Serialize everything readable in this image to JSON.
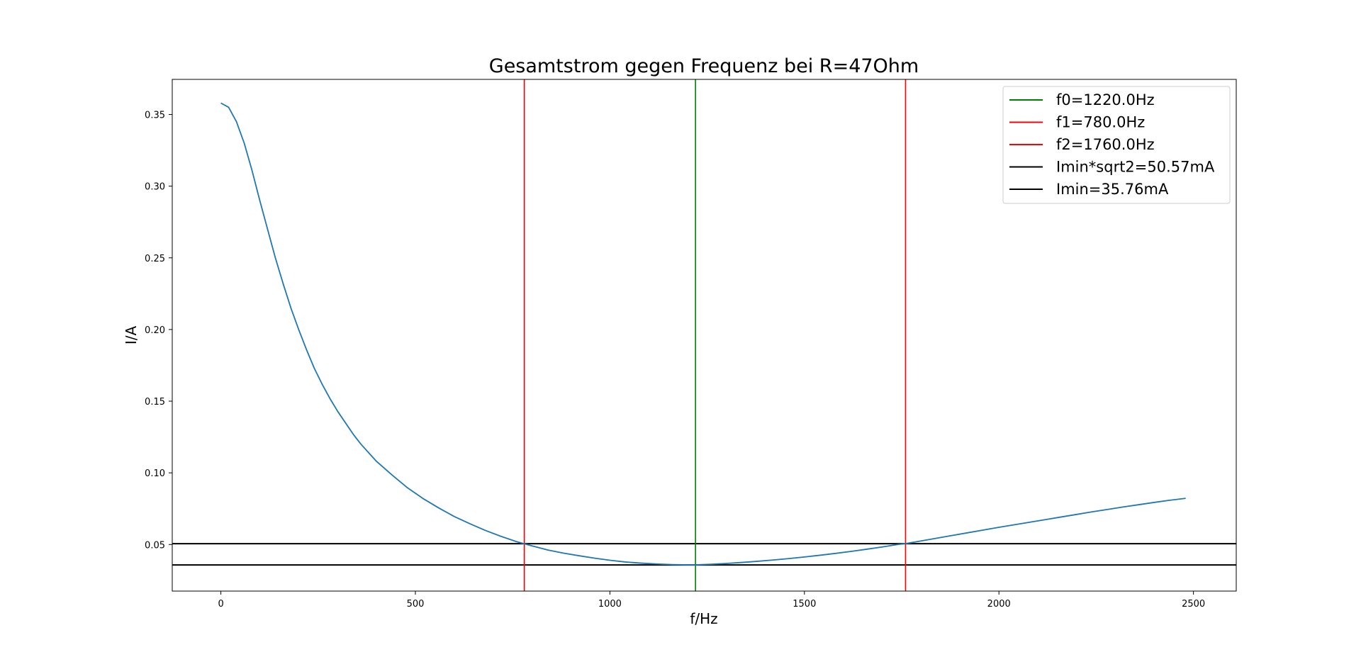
{
  "chart_data": {
    "type": "line",
    "title": "Gesamtstrom gegen Frequenz bei R=47Ohm",
    "xlabel": "f/Hz",
    "ylabel": "I/A",
    "xlim": [
      -125,
      2610
    ],
    "ylim": [
      0.0175,
      0.3745
    ],
    "xticks": [
      0,
      500,
      1000,
      1500,
      2000,
      2500
    ],
    "xtick_labels": [
      "0",
      "500",
      "1000",
      "1500",
      "2000",
      "2500"
    ],
    "yticks": [
      0.05,
      0.1,
      0.15,
      0.2,
      0.25,
      0.3,
      0.35
    ],
    "ytick_labels": [
      "0.05",
      "0.10",
      "0.15",
      "0.20",
      "0.25",
      "0.30",
      "0.35"
    ],
    "grid": false,
    "legend_position": "upper right",
    "series": [
      {
        "color": "#1f77b4",
        "x": [
          0,
          20,
          40,
          60,
          80,
          100,
          120,
          140,
          160,
          180,
          200,
          220,
          240,
          260,
          280,
          300,
          320,
          340,
          360,
          380,
          400,
          440,
          480,
          520,
          560,
          600,
          640,
          680,
          720,
          760,
          780,
          800,
          840,
          880,
          920,
          960,
          1000,
          1040,
          1080,
          1120,
          1160,
          1200,
          1220,
          1260,
          1300,
          1340,
          1380,
          1420,
          1460,
          1500,
          1540,
          1580,
          1620,
          1660,
          1700,
          1740,
          1760,
          1800,
          1840,
          1880,
          1920,
          1960,
          2000,
          2040,
          2080,
          2120,
          2160,
          2200,
          2240,
          2280,
          2320,
          2360,
          2400,
          2440,
          2480
        ],
        "y": [
          0.358,
          0.355,
          0.345,
          0.33,
          0.311,
          0.29,
          0.27,
          0.25,
          0.232,
          0.215,
          0.2,
          0.186,
          0.173,
          0.162,
          0.152,
          0.143,
          0.135,
          0.127,
          0.12,
          0.114,
          0.108,
          0.0985,
          0.0895,
          0.082,
          0.0755,
          0.0695,
          0.0645,
          0.0598,
          0.0557,
          0.052,
          0.0505,
          0.049,
          0.0462,
          0.044,
          0.0422,
          0.0405,
          0.039,
          0.0378,
          0.037,
          0.0364,
          0.036,
          0.0358,
          0.0358,
          0.0362,
          0.0368,
          0.0375,
          0.0383,
          0.0392,
          0.0402,
          0.0413,
          0.0425,
          0.0438,
          0.0452,
          0.0467,
          0.0483,
          0.05,
          0.0506,
          0.0525,
          0.0544,
          0.0563,
          0.0582,
          0.0601,
          0.062,
          0.0638,
          0.0656,
          0.0674,
          0.0692,
          0.071,
          0.0728,
          0.0745,
          0.0762,
          0.0778,
          0.0794,
          0.0809,
          0.0822
        ]
      }
    ],
    "vlines": [
      {
        "x": 1220.0,
        "color": "#008000",
        "legend": "f0=1220.0Hz"
      },
      {
        "x": 780.0,
        "color": "#ff0000",
        "legend": "f1=780.0Hz"
      },
      {
        "x": 1760.0,
        "color": "#ff0000",
        "legend": "f2=1760.0Hz"
      }
    ],
    "hlines": [
      {
        "y": 0.05057,
        "color": "#000000",
        "legend": "Imin*sqrt2=50.57mA"
      },
      {
        "y": 0.03576,
        "color": "#000000",
        "legend": "Imin=35.76mA"
      }
    ]
  }
}
